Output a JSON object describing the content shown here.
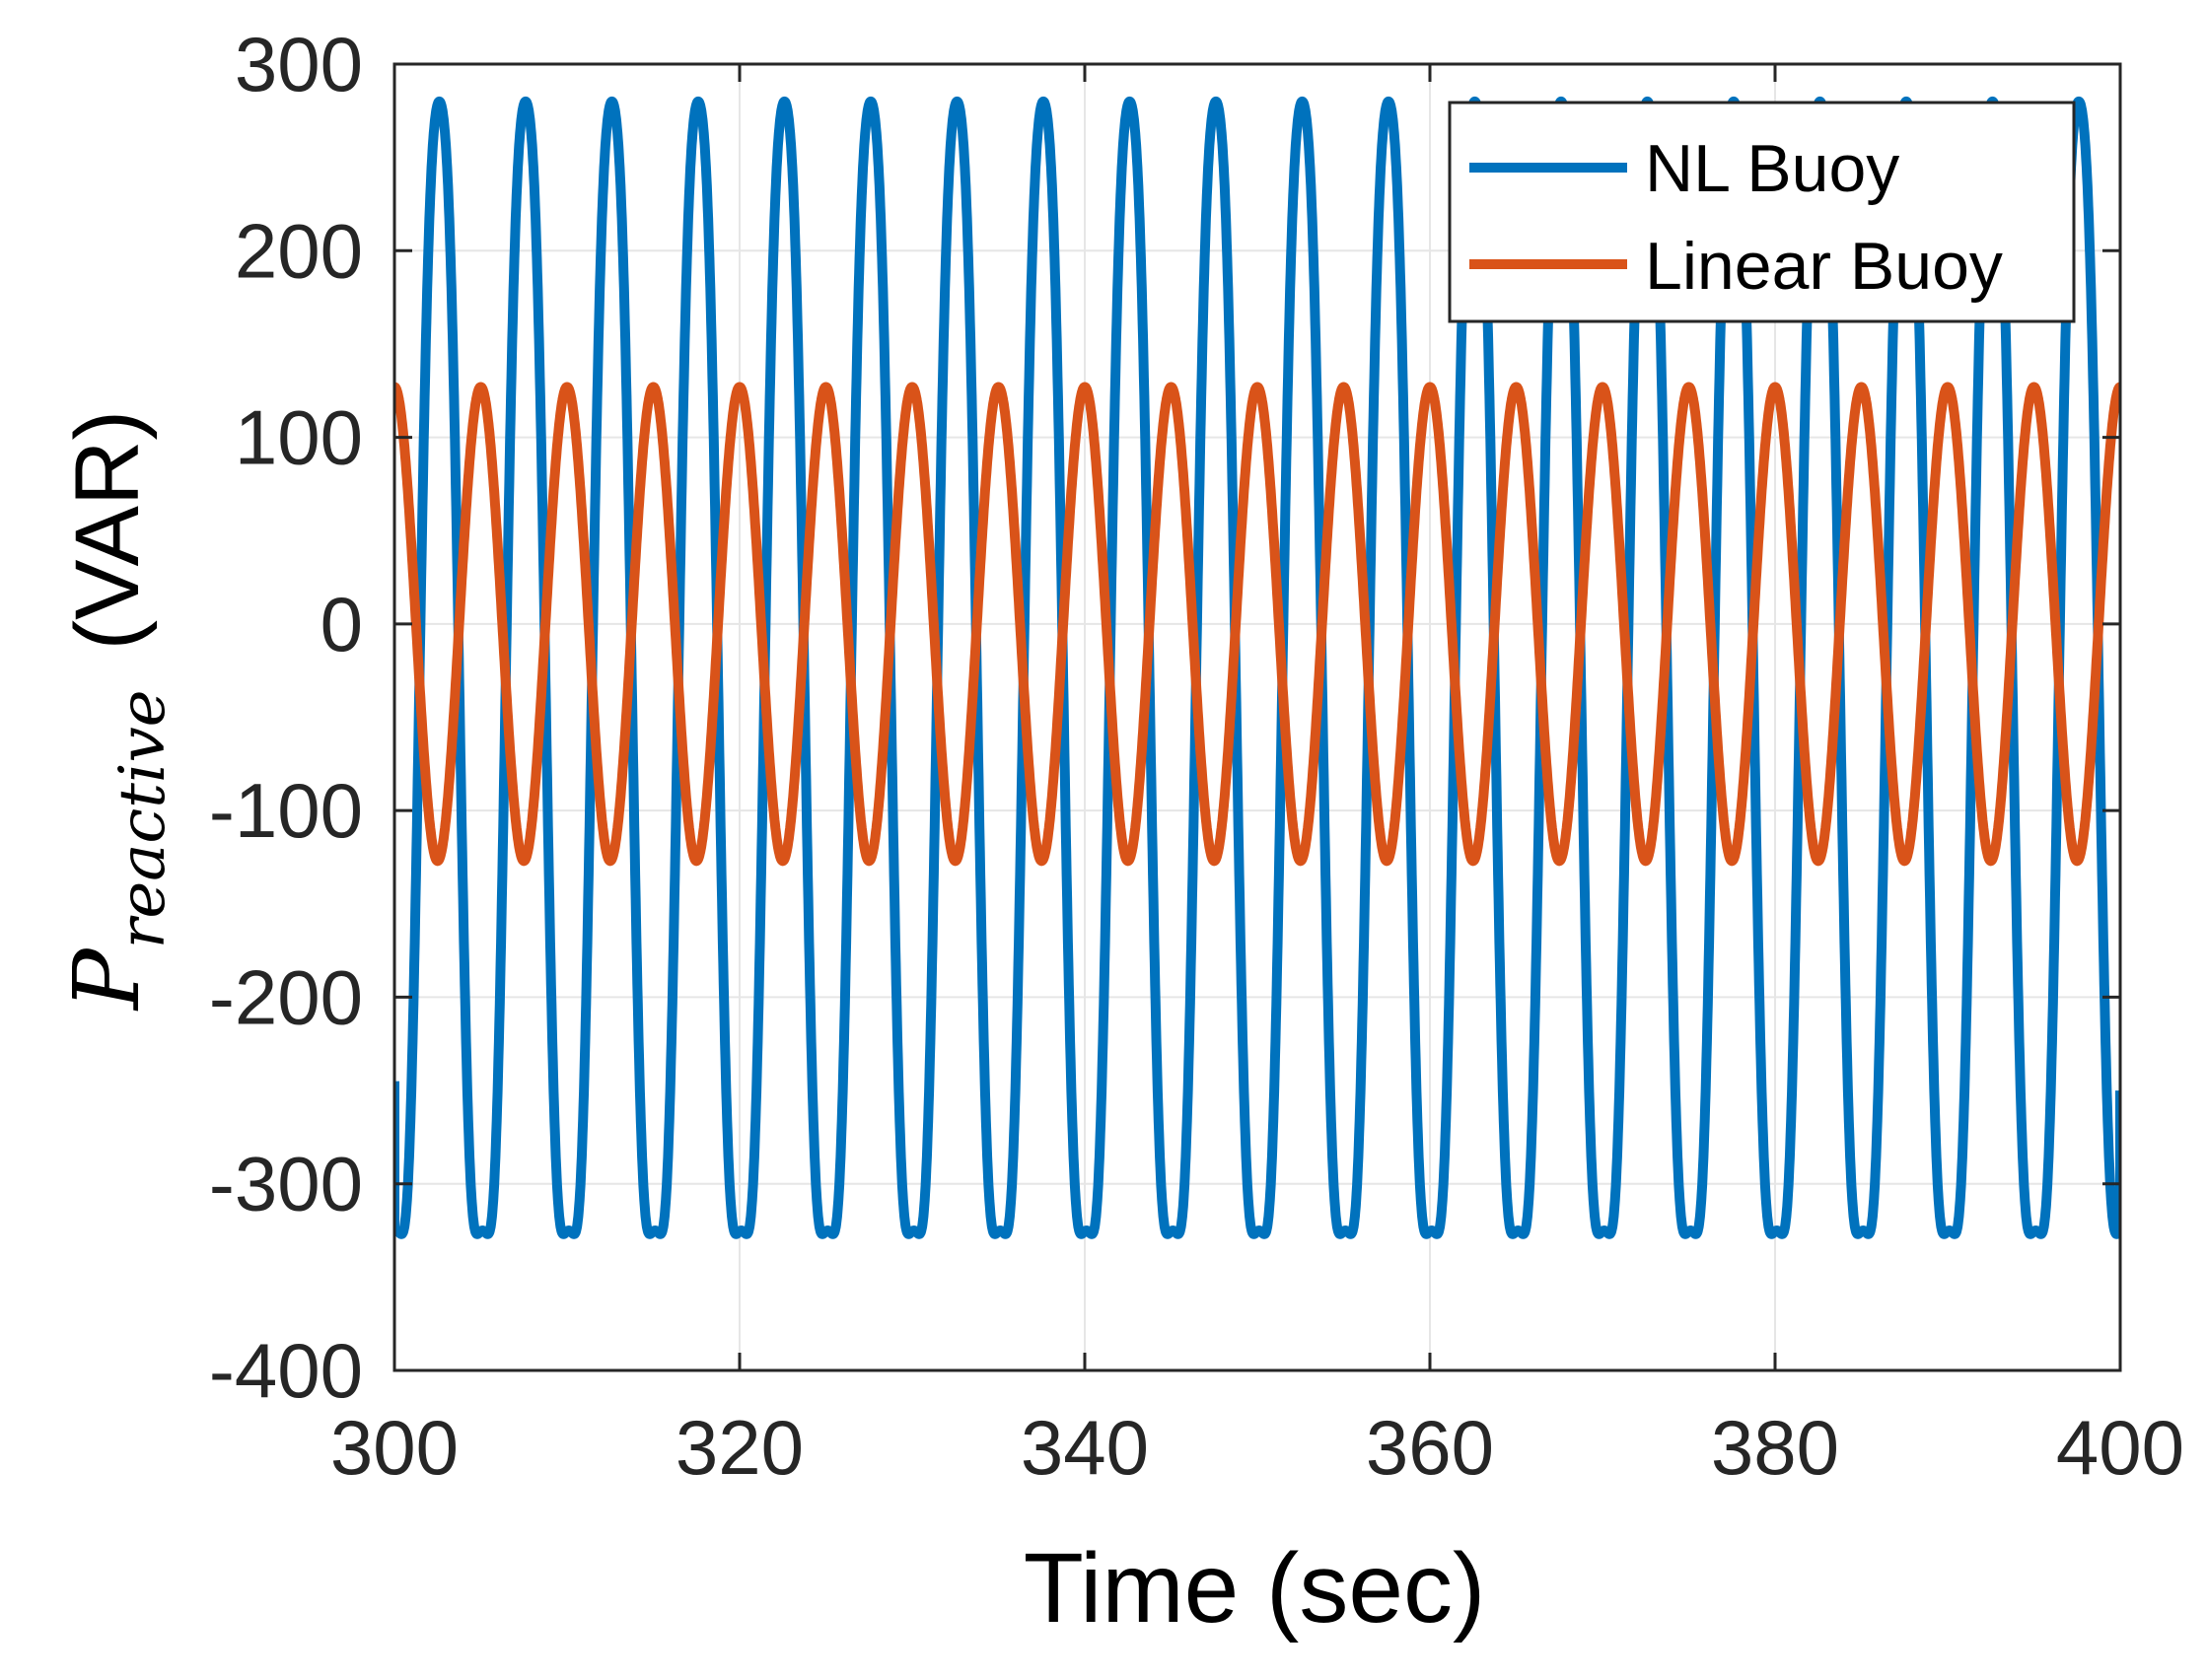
{
  "chart_data": {
    "type": "line",
    "title": "",
    "xlabel": "Time (sec)",
    "ylabel": {
      "symbol": "P",
      "subscript": "reactive",
      "unit": "(VAR)"
    },
    "xlim": [
      300,
      400
    ],
    "ylim": [
      -400,
      300
    ],
    "xticks": [
      300,
      320,
      340,
      360,
      380,
      400
    ],
    "yticks": [
      300,
      200,
      100,
      0,
      -100,
      -200,
      -300,
      -400
    ],
    "ytick_labels": [
      "300",
      "200",
      "100",
      "0",
      "-100",
      "-200",
      "-300",
      "-400"
    ],
    "grid": true,
    "legend_position": "top-right",
    "series": [
      {
        "name": "NL Buoy",
        "color": "#0072BD",
        "period": 5.0,
        "max": 280,
        "min": -385,
        "first_peak_time": 302.6,
        "start_value": -245,
        "end_value": -250
      },
      {
        "name": "Linear Buoy",
        "color": "#D95319",
        "period": 5.0,
        "amplitude": 127,
        "first_peak_time": 300.0
      }
    ]
  }
}
